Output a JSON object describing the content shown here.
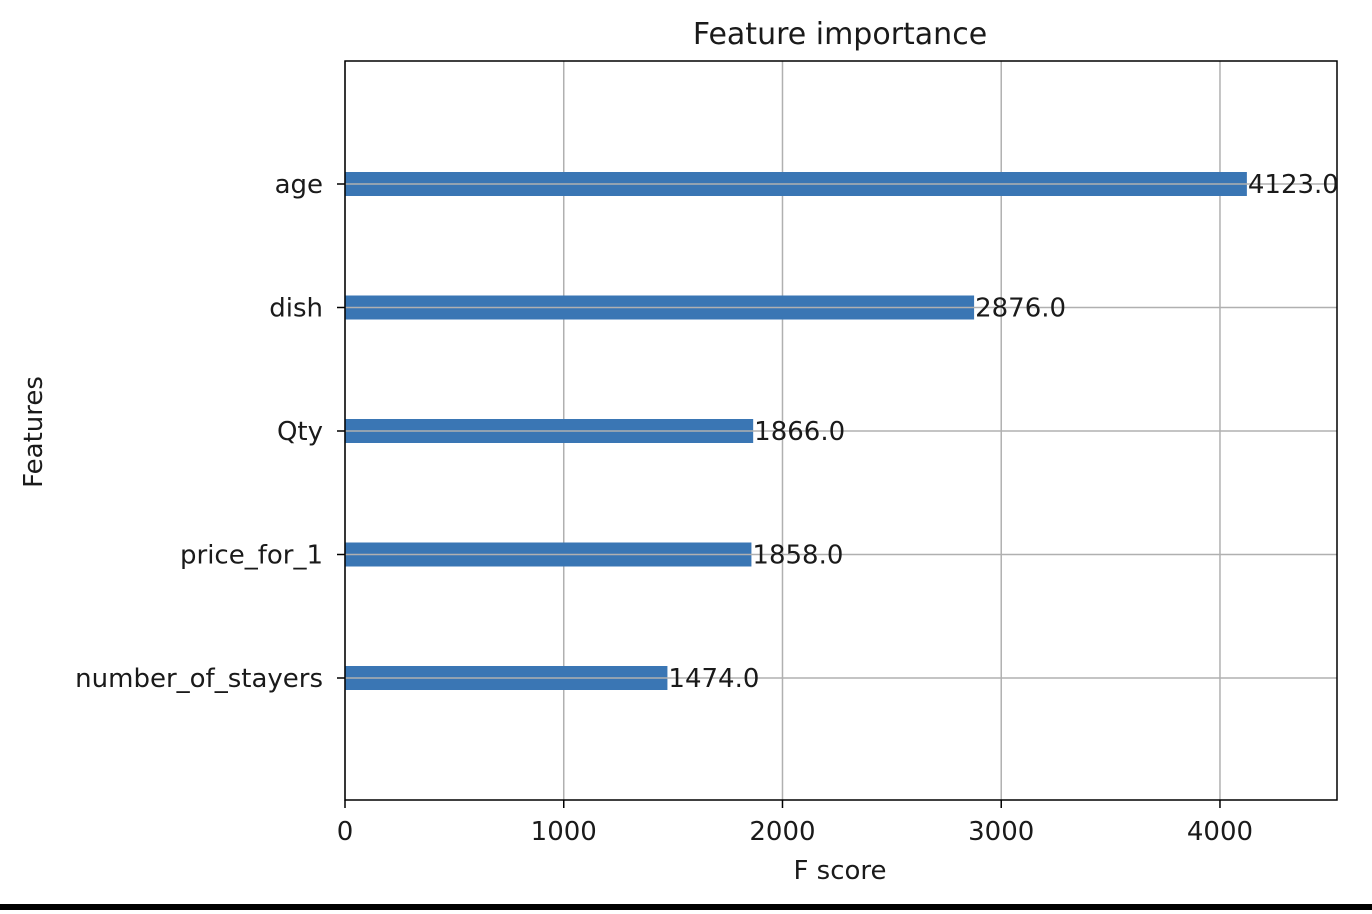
{
  "chart_data": {
    "type": "bar",
    "orientation": "horizontal",
    "title": "Feature importance",
    "xlabel": "F score",
    "ylabel": "Features",
    "categories": [
      "age",
      "dish",
      "Qty",
      "price_for_1",
      "number_of_stayers"
    ],
    "values": [
      4123.0,
      2876.0,
      1866.0,
      1858.0,
      1474.0
    ],
    "value_labels": [
      "4123.0",
      "2876.0",
      "1866.0",
      "1858.0",
      "1474.0"
    ],
    "xlim": [
      0,
      4535
    ],
    "xticks": [
      0,
      1000,
      2000,
      3000,
      4000
    ],
    "xtick_labels": [
      "0",
      "1000",
      "2000",
      "3000",
      "4000"
    ],
    "grid": true,
    "legend": "none",
    "bar_color": "#3a76b4",
    "grid_color": "#b0b0b0"
  }
}
